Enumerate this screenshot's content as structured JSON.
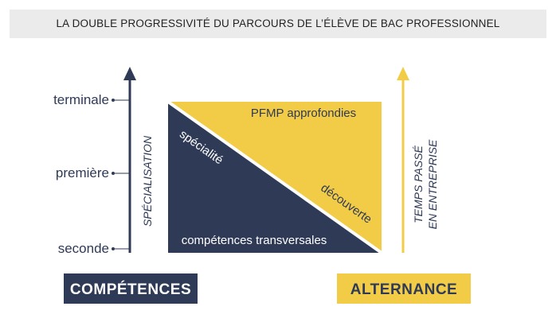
{
  "title": "LA DOUBLE PROGRESSIVITÉ DU PARCOURS DE L’ÉLÈVE DE BAC PROFESSIONNEL",
  "levels": [
    "terminale",
    "première",
    "seconde"
  ],
  "left_axis_label": "SPÉCIALISATION",
  "right_axis_label_line1": "TEMPS PASSÉ",
  "right_axis_label_line2": "EN ENTREPRISE",
  "triangle_top_label": "PFMP approfondies",
  "triangle_bottom_label": "compétences transversales",
  "diagonal_upper_label": "spécialité",
  "diagonal_lower_label": "découverte",
  "left_badge": "COMPÉTENCES",
  "right_badge": "ALTERNANCE",
  "colors": {
    "navy": "#2f3a57",
    "yellow": "#f2cc47",
    "title_bar": "#ebebeb"
  }
}
